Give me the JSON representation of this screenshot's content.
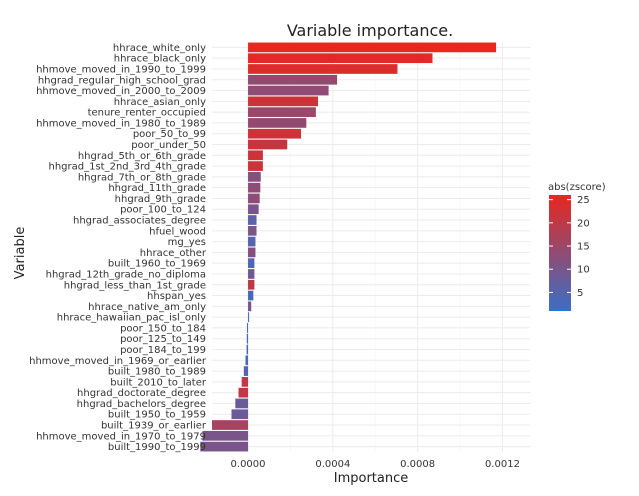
{
  "chart_data": {
    "type": "bar",
    "orientation": "horizontal",
    "title": "Variable importance.",
    "xlabel": "Importance",
    "ylabel": "Variable",
    "xlim": [
      -0.00017,
      0.00133
    ],
    "xticks": [
      0.0,
      0.0004,
      0.0008,
      0.0012
    ],
    "xtick_labels": [
      "0.0000",
      "0.0004",
      "0.0008",
      "0.0012"
    ],
    "grid": true,
    "legend": {
      "title": "abs(zscore)",
      "placement": "right",
      "range": [
        1,
        26
      ],
      "ticks": [
        5,
        10,
        15,
        20,
        25
      ],
      "tick_labels": [
        "5",
        "10",
        "15",
        "20",
        "25"
      ],
      "color_low": "#3a6fc8",
      "color_high": "#e8271e"
    },
    "categories": [
      "hhrace_white_only",
      "hhrace_black_only",
      "hhmove_moved_in_1990_to_1999",
      "hhgrad_regular_high_school_grad",
      "hhmove_moved_in_2000_to_2009",
      "hhrace_asian_only",
      "tenure_renter_occupied",
      "hhmove_moved_in_1980_to_1989",
      "poor_50_to_99",
      "poor_under_50",
      "hhgrad_5th_or_6th_grade",
      "hhgrad_1st_2nd_3rd_4th_grade",
      "hhgrad_7th_or_8th_grade",
      "hhgrad_11th_grade",
      "hhgrad_9th_grade",
      "poor_100_to_124",
      "hhgrad_associates_degree",
      "hfuel_wood",
      "mg_yes",
      "hhrace_other",
      "built_1960_to_1969",
      "hhgrad_12th_grade_no_diploma",
      "hhgrad_less_than_1st_grade",
      "hhspan_yes",
      "hhrace_native_am_only",
      "hhrace_hawaiian_pac_isl_only",
      "poor_150_to_184",
      "poor_125_to_149",
      "poor_184_to_199",
      "hhmove_moved_in_1969_or_earlier",
      "built_1980_to_1989",
      "built_2010_to_later",
      "hhgrad_doctorate_degree",
      "hhgrad_bachelors_degree",
      "built_1950_to_1959",
      "built_1939_or_earlier",
      "hhmove_moved_in_1970_to_1979",
      "built_1990_to_1999"
    ],
    "values": [
      0.00117,
      0.00087,
      0.000705,
      0.00042,
      0.00038,
      0.00033,
      0.00032,
      0.000275,
      0.00025,
      0.000185,
      7e-05,
      7e-05,
      6e-05,
      5.8e-05,
      5.5e-05,
      5e-05,
      4e-05,
      4e-05,
      3.5e-05,
      3.5e-05,
      3e-05,
      3e-05,
      3e-05,
      2.5e-05,
      1.5e-05,
      5e-06,
      -5e-06,
      -6e-06,
      -7e-06,
      -1.2e-05,
      -2e-05,
      -3e-05,
      -4.5e-05,
      -6e-05,
      -7.8e-05,
      -0.00017,
      -0.000215,
      -0.000225
    ],
    "zscore_abs": [
      26,
      25,
      24,
      14,
      13,
      22,
      15,
      14,
      22,
      21,
      22,
      22,
      12,
      13,
      13,
      10,
      6,
      10,
      5,
      12,
      4,
      9,
      20,
      3,
      10,
      2,
      2,
      2,
      3,
      3,
      5,
      20,
      20,
      8,
      8,
      16,
      10,
      10
    ]
  }
}
